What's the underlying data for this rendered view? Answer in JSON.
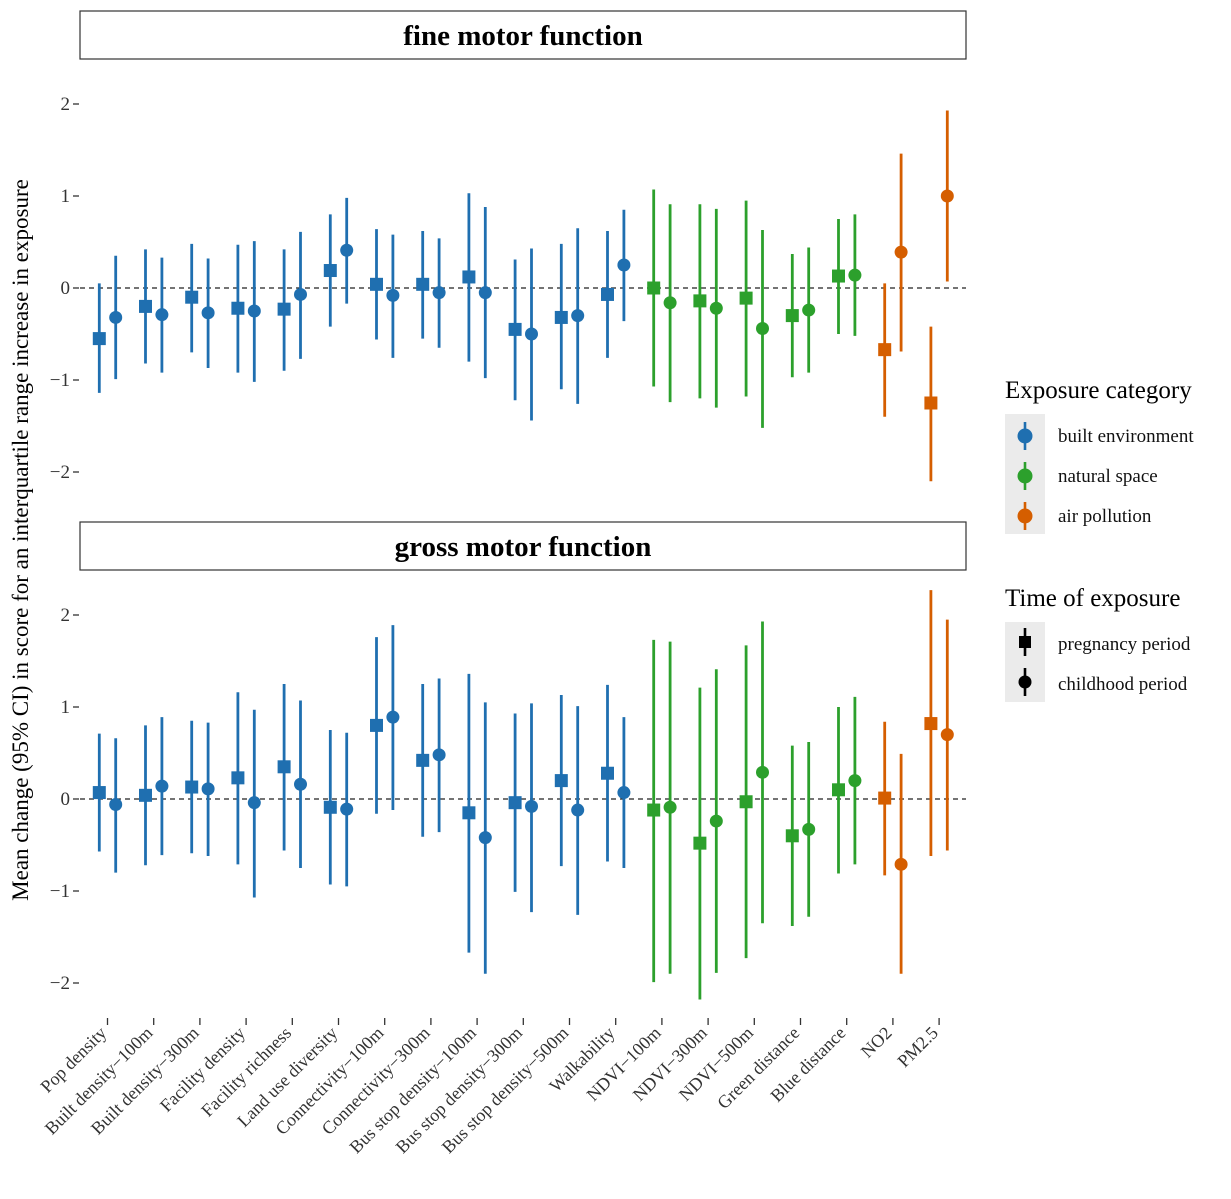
{
  "chart_data": {
    "type": "scatter",
    "geom": "pointrange",
    "ylabel": "Mean change (95% CI) in score for an interquartile range increase in exposure",
    "xlabel": "",
    "ylim": [
      -2.3,
      2.3
    ],
    "yticks": [
      -2,
      -1,
      0,
      1,
      2
    ],
    "ytick_labels": [
      "−2",
      "−1",
      "0",
      "1",
      "2"
    ],
    "reference_line": 0,
    "grid": false,
    "categories": [
      "Pop density",
      "Built density−100m",
      "Built density−300m",
      "Facility density",
      "Facility richness",
      "Land use diversity",
      "Connectivity−100m",
      "Connectivity−300m",
      "Bus stop density−100m",
      "Bus stop density−300m",
      "Bus stop density−500m",
      "Walkability",
      "NDVI−100m",
      "NDVI−300m",
      "NDVI−500m",
      "Green distance",
      "Blue distance",
      "NO2",
      "PM2.5"
    ],
    "category_group": [
      "built environment",
      "built environment",
      "built environment",
      "built environment",
      "built environment",
      "built environment",
      "built environment",
      "built environment",
      "built environment",
      "built environment",
      "built environment",
      "built environment",
      "natural space",
      "natural space",
      "natural space",
      "natural space",
      "natural space",
      "air pollution",
      "air pollution"
    ],
    "colors": {
      "built environment": "#1f6fb0",
      "natural space": "#2ca02c",
      "air pollution": "#d55e00"
    },
    "legend": {
      "placement": "right",
      "color_title": "Exposure category",
      "color_entries": [
        "built environment",
        "natural space",
        "air pollution"
      ],
      "shape_title": "Time of exposure",
      "shape_entries": [
        {
          "label": "pregnancy period",
          "shape": "square"
        },
        {
          "label": "childhood period",
          "shape": "circle"
        }
      ]
    },
    "panels": [
      {
        "title": "fine motor function",
        "series": [
          {
            "name": "pregnancy period",
            "shape": "square",
            "values": [
              -0.55,
              -0.2,
              -0.1,
              -0.22,
              -0.23,
              0.19,
              0.04,
              0.04,
              0.12,
              -0.45,
              -0.32,
              -0.07,
              0.0,
              -0.14,
              -0.11,
              -0.3,
              0.13,
              -0.67,
              -1.25
            ],
            "lower": [
              -1.14,
              -0.82,
              -0.7,
              -0.92,
              -0.9,
              -0.42,
              -0.56,
              -0.55,
              -0.8,
              -1.22,
              -1.1,
              -0.76,
              -1.07,
              -1.2,
              -1.18,
              -0.97,
              -0.5,
              -1.4,
              -2.1
            ],
            "upper": [
              0.05,
              0.42,
              0.48,
              0.47,
              0.42,
              0.8,
              0.64,
              0.62,
              1.03,
              0.31,
              0.48,
              0.62,
              1.07,
              0.91,
              0.95,
              0.37,
              0.75,
              0.05,
              -0.42
            ]
          },
          {
            "name": "childhood period",
            "shape": "circle",
            "values": [
              -0.32,
              -0.29,
              -0.27,
              -0.25,
              -0.07,
              0.41,
              -0.08,
              -0.05,
              -0.05,
              -0.5,
              -0.3,
              0.25,
              -0.16,
              -0.22,
              -0.44,
              -0.24,
              0.14,
              0.39,
              1.0
            ],
            "lower": [
              -0.99,
              -0.92,
              -0.87,
              -1.02,
              -0.77,
              -0.17,
              -0.76,
              -0.65,
              -0.98,
              -1.44,
              -1.26,
              -0.36,
              -1.24,
              -1.3,
              -1.52,
              -0.92,
              -0.52,
              -0.69,
              0.07
            ],
            "upper": [
              0.35,
              0.33,
              0.32,
              0.51,
              0.61,
              0.98,
              0.58,
              0.54,
              0.88,
              0.43,
              0.65,
              0.85,
              0.91,
              0.86,
              0.63,
              0.44,
              0.8,
              1.46,
              1.93
            ]
          }
        ]
      },
      {
        "title": "gross motor function",
        "series": [
          {
            "name": "pregnancy period",
            "shape": "square",
            "values": [
              0.07,
              0.04,
              0.13,
              0.23,
              0.35,
              -0.09,
              0.8,
              0.42,
              -0.15,
              -0.04,
              0.2,
              0.28,
              -0.12,
              -0.48,
              -0.03,
              -0.4,
              0.1,
              0.01,
              0.82
            ],
            "lower": [
              -0.57,
              -0.72,
              -0.59,
              -0.71,
              -0.56,
              -0.93,
              -0.16,
              -0.41,
              -1.67,
              -1.01,
              -0.73,
              -0.68,
              -1.99,
              -2.18,
              -1.73,
              -1.38,
              -0.81,
              -0.83,
              -0.62
            ],
            "upper": [
              0.71,
              0.8,
              0.85,
              1.16,
              1.25,
              0.75,
              1.76,
              1.25,
              1.36,
              0.93,
              1.13,
              1.24,
              1.73,
              1.21,
              1.67,
              0.58,
              1.0,
              0.84,
              2.27
            ]
          },
          {
            "name": "childhood period",
            "shape": "circle",
            "values": [
              -0.06,
              0.14,
              0.11,
              -0.04,
              0.16,
              -0.11,
              0.89,
              0.48,
              -0.42,
              -0.08,
              -0.12,
              0.07,
              -0.09,
              -0.24,
              0.29,
              -0.33,
              0.2,
              -0.71,
              0.7
            ],
            "lower": [
              -0.8,
              -0.61,
              -0.62,
              -1.07,
              -0.75,
              -0.95,
              -0.12,
              -0.36,
              -1.9,
              -1.23,
              -1.26,
              -0.75,
              -1.9,
              -1.89,
              -1.35,
              -1.28,
              -0.71,
              -1.9,
              -0.56
            ],
            "upper": [
              0.66,
              0.89,
              0.83,
              0.97,
              1.07,
              0.72,
              1.89,
              1.31,
              1.05,
              1.04,
              1.01,
              0.89,
              1.71,
              1.41,
              1.93,
              0.62,
              1.11,
              0.49,
              1.95
            ]
          }
        ]
      }
    ]
  }
}
